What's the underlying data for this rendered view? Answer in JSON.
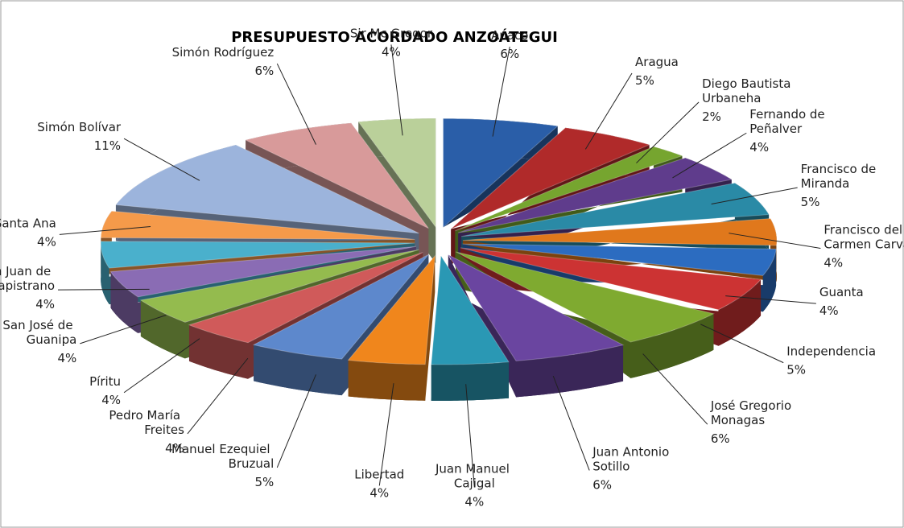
{
  "chart_data": {
    "type": "pie",
    "title": "PRESUPUESTO ACORDADO ANZOÁTEGUI",
    "categories": [
      "Anaco",
      "Aragua",
      "Diego Bautista Urbaneha",
      "Fernando de Peñalver",
      "Francisco de Miranda",
      "Francisco del Carmen Carvajal",
      "Guanta",
      "Independencia",
      "José Gregorio Monagas",
      "Juan Antonio Sotillo",
      "Juan Manuel Cajigal",
      "Libertad",
      "Manuel Ezequiel Bruzual",
      "Pedro María Freites",
      "Píritu",
      "San José de Guanipa",
      "San Juan de Capistrano",
      "Santa Ana",
      "Simón Bolívar",
      "Simón Rodríguez",
      "Sir Mc Gregor"
    ],
    "values": [
      6,
      5,
      2,
      4,
      5,
      4,
      4,
      5,
      6,
      6,
      4,
      4,
      5,
      4,
      4,
      4,
      4,
      4,
      11,
      6,
      4
    ],
    "value_labels": [
      "6%",
      "5%",
      "2%",
      "4%",
      "5%",
      "4%",
      "4%",
      "5%",
      "6%",
      "6%",
      "4%",
      "4%",
      "5%",
      "4%",
      "4%",
      "4%",
      "4%",
      "4%",
      "11%",
      "6%",
      "4%"
    ],
    "colors": [
      "#2a5ea8",
      "#b02a2a",
      "#76a52f",
      "#5f3c8c",
      "#2a8aa6",
      "#e0781c",
      "#2c6cc0",
      "#cc3333",
      "#7faa30",
      "#6a45a0",
      "#2a98b4",
      "#f0861c",
      "#5d88cc",
      "#d05a5a",
      "#94bb4e",
      "#8a6cb4",
      "#4ab0cc",
      "#f59a4a",
      "#9cb4dc",
      "#d89a9a",
      "#bad09a"
    ]
  }
}
